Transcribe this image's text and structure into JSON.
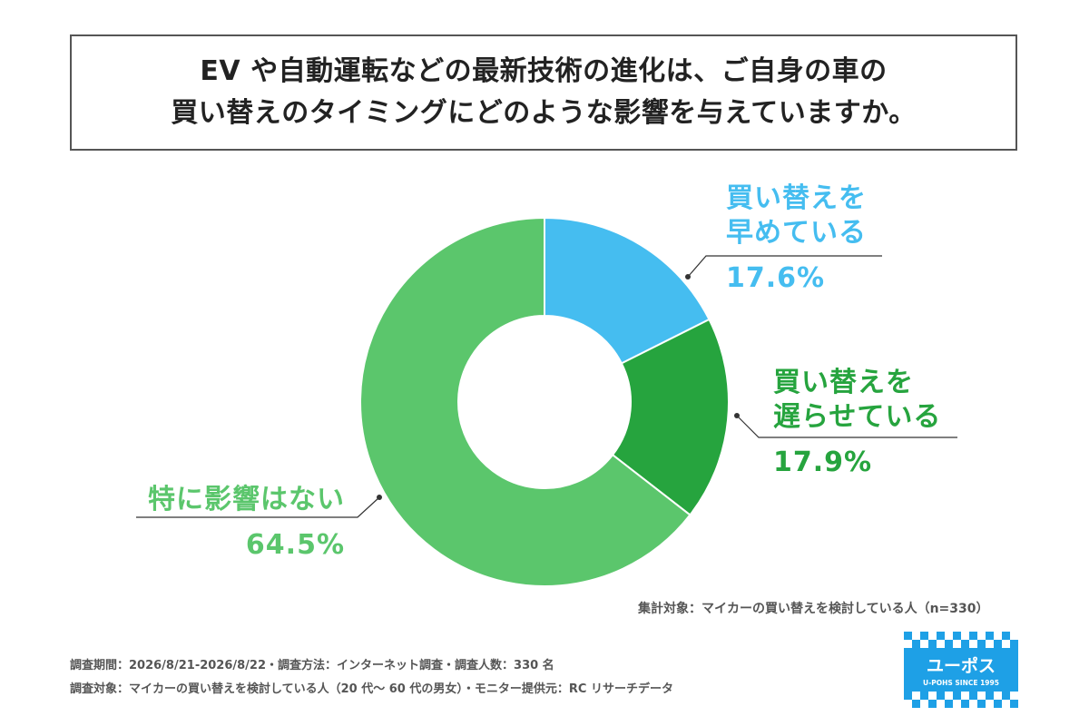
{
  "title": {
    "line1": "EV や自動運転などの最新技術の進化は、ご自身の車の",
    "line2": "買い替えのタイミングにどのような影響を与えていますか。"
  },
  "chart_data": {
    "type": "pie",
    "donut": true,
    "slices": [
      {
        "label_line1": "買い替えを",
        "label_line2": "早めている",
        "value": 17.6,
        "value_text": "17.6%",
        "color": "#45bdf0"
      },
      {
        "label_line1": "買い替えを",
        "label_line2": "遅らせている",
        "value": 17.9,
        "value_text": "17.9%",
        "color": "#26a43e"
      },
      {
        "label_line1": "特に影響はない",
        "label_line2": "",
        "value": 64.5,
        "value_text": "64.5%",
        "color": "#5bc66c"
      }
    ]
  },
  "notes": {
    "population": "集計対象：マイカーの買い替えを検討している人（n=330）",
    "period": "調査期間：2026/8/21-2026/8/22・調査方法：インターネット調査・調査人数：330 名",
    "target": "調査対象：マイカーの買い替えを検討している人（20 代～ 60 代の男女）・モニター提供元：RC リサーチデータ"
  },
  "logo": {
    "name": "ユーポス",
    "tagline": "U-POHS SINCE 1995",
    "color": "#1ea0e6"
  }
}
